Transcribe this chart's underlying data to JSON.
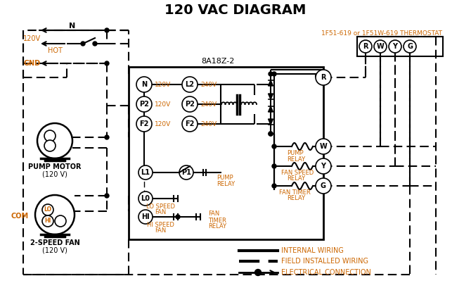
{
  "title": "120 VAC DIAGRAM",
  "bg_color": "#ffffff",
  "line_color": "#000000",
  "orange_color": "#cc6600",
  "thermostat_label": "1F51-619 or 1F51W-619 THERMOSTAT",
  "box_label": "8A18Z-2",
  "legend_items": [
    {
      "label": "INTERNAL WIRING"
    },
    {
      "label": "FIELD INSTALLED WIRING"
    },
    {
      "label": "ELECTRICAL CONNECTION"
    }
  ],
  "terminal_labels": [
    "R",
    "W",
    "Y",
    "G"
  ],
  "motor_label1": "PUMP MOTOR",
  "motor_label2": "(120 V)",
  "fan_label1": "2-SPEED FAN",
  "fan_label2": "(120 V)"
}
